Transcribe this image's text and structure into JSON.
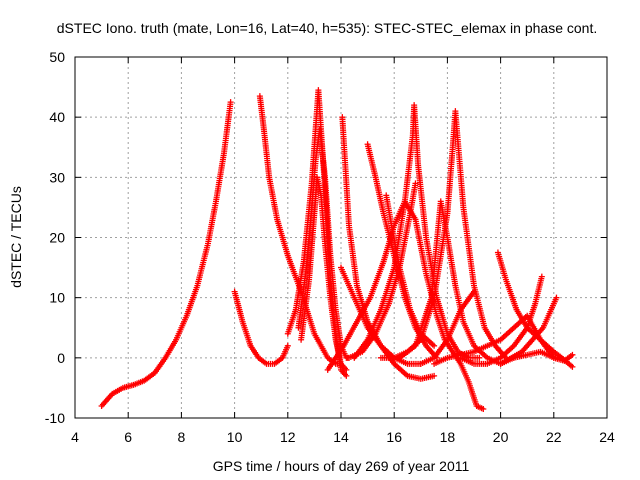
{
  "chart_data": {
    "type": "scatter",
    "title": "dSTEC Iono. truth (mate, Lon=16, Lat=40, h=535): STEC-STEC_elemax in phase cont.",
    "xlabel": "GPS time / hours of day 269 of year 2011",
    "ylabel": "dSTEC  / TECUs",
    "xlim": [
      4,
      24
    ],
    "ylim": [
      -10,
      50
    ],
    "x_ticks": [
      4,
      6,
      8,
      10,
      12,
      14,
      16,
      18,
      20,
      22,
      24
    ],
    "y_ticks": [
      -10,
      0,
      10,
      20,
      30,
      40,
      50
    ],
    "grid": true,
    "marker": "+",
    "color": "#ff0000",
    "series": [
      {
        "x": [
          5.0,
          5.4,
          5.8,
          6.2,
          6.6,
          7.0,
          7.4,
          7.8,
          8.2,
          8.6,
          9.0,
          9.3,
          9.6,
          9.85
        ],
        "y": [
          -8,
          -6,
          -5,
          -4.5,
          -3.8,
          -2.5,
          0,
          3,
          7,
          12,
          19,
          26,
          34,
          42.5
        ]
      },
      {
        "x": [
          10.0,
          10.3,
          10.6,
          10.9,
          11.2,
          11.5,
          11.8,
          12.0
        ],
        "y": [
          11,
          6,
          2,
          0,
          -1,
          -1,
          0,
          2
        ]
      },
      {
        "x": [
          10.95,
          11.1,
          11.3,
          11.6,
          12.0,
          12.5,
          13.0,
          13.5,
          13.8,
          14.0
        ],
        "y": [
          43.5,
          38,
          30,
          23,
          17,
          11,
          4,
          0,
          -1,
          -1
        ]
      },
      {
        "x": [
          12.4,
          12.7,
          12.9,
          13.05,
          13.2,
          13.4,
          13.6,
          13.8,
          14.0,
          14.2,
          14.3
        ],
        "y": [
          5,
          15,
          25,
          33,
          38,
          30,
          17,
          8,
          2,
          0,
          0
        ]
      },
      {
        "x": [
          12.5,
          12.8,
          13.0,
          13.1,
          13.25,
          13.4,
          13.6,
          13.8,
          14.0,
          14.2
        ],
        "y": [
          3,
          13,
          24,
          30,
          27,
          19,
          10,
          3,
          -1,
          -2
        ]
      },
      {
        "x": [
          12.0,
          12.3,
          12.6,
          12.9,
          13.15,
          13.4,
          13.6,
          13.8,
          14.0,
          14.2
        ],
        "y": [
          4,
          8,
          16,
          29,
          44.5,
          28,
          13,
          4,
          -2,
          -3
        ]
      },
      {
        "x": [
          14.05,
          14.3,
          14.6,
          15.0,
          15.5,
          16.0,
          16.5,
          17.0,
          17.5
        ],
        "y": [
          40,
          22,
          12,
          6,
          2,
          -1,
          -3,
          -3.5,
          -3
        ]
      },
      {
        "x": [
          13.5,
          13.8,
          14.1,
          14.6,
          15.1,
          15.6,
          16.0,
          16.4,
          16.8,
          17.2,
          17.6,
          17.9,
          18.2,
          18.5,
          18.8,
          19.1,
          19.35
        ],
        "y": [
          -2,
          0,
          2,
          6,
          10,
          16,
          22,
          26,
          23,
          14,
          7,
          3,
          1,
          -1,
          -4,
          -8,
          -8.5
        ]
      },
      {
        "x": [
          14.0,
          14.5,
          15.0,
          15.5,
          16.0,
          16.5,
          17.0
        ],
        "y": [
          15,
          10,
          5,
          2,
          0,
          -1,
          -1
        ]
      },
      {
        "x": [
          15.0,
          15.3,
          15.6,
          16.0,
          16.4,
          16.8,
          17.2,
          17.6
        ],
        "y": [
          35.5,
          30,
          24,
          17,
          10,
          5,
          2,
          0
        ]
      },
      {
        "x": [
          15.7,
          15.9,
          16.2,
          16.6,
          17.0,
          17.5
        ],
        "y": [
          27,
          22,
          15,
          8,
          4,
          2
        ]
      },
      {
        "x": [
          14.5,
          15.0,
          15.5,
          16.0,
          16.4,
          16.7,
          16.75,
          16.9,
          17.2,
          17.6,
          18.0,
          18.4,
          18.8,
          19.2
        ],
        "y": [
          0,
          3,
          8,
          15,
          26,
          37,
          42,
          32,
          20,
          10,
          4,
          1,
          0,
          0
        ]
      },
      {
        "x": [
          14.3,
          14.8,
          15.3,
          15.8,
          16.2,
          16.6,
          16.8
        ],
        "y": [
          0,
          1,
          4,
          9,
          15,
          24,
          29
        ]
      },
      {
        "x": [
          16.2,
          16.8,
          17.4,
          17.75,
          18.0,
          18.3,
          18.6,
          19.0,
          19.5,
          20.0,
          20.5
        ],
        "y": [
          0,
          2,
          10,
          26,
          20,
          12,
          6,
          2,
          0,
          -1,
          0
        ]
      },
      {
        "x": [
          15.5,
          16.0,
          16.5,
          17.0,
          17.5,
          18.0,
          18.2,
          18.3,
          18.6,
          19.0,
          19.4,
          19.8,
          20.2
        ],
        "y": [
          0,
          0,
          1,
          3,
          10,
          24,
          35,
          41,
          25,
          12,
          5,
          2,
          0
        ]
      },
      {
        "x": [
          17.0,
          17.5,
          18.0,
          18.5,
          19.0
        ],
        "y": [
          -1,
          0,
          3,
          8,
          11
        ]
      },
      {
        "x": [
          17.5,
          18.0,
          18.5,
          19.0,
          19.5,
          20.0,
          20.5,
          21.0,
          21.5,
          22.0
        ],
        "y": [
          -1,
          0,
          0.5,
          1,
          2,
          3,
          5,
          7,
          3,
          0
        ]
      },
      {
        "x": [
          19.9,
          20.2,
          20.6,
          21.0,
          21.5,
          22.0,
          22.3,
          22.7
        ],
        "y": [
          17.5,
          13,
          8,
          5,
          3,
          1,
          0,
          -1.5
        ]
      },
      {
        "x": [
          20.0,
          20.4,
          20.8,
          21.2,
          21.6,
          21.9,
          22.1
        ],
        "y": [
          -1,
          0,
          1,
          3,
          5,
          8,
          10
        ]
      },
      {
        "x": [
          18.5,
          19.0,
          19.5,
          20.0,
          20.5,
          21.0,
          21.3,
          21.55
        ],
        "y": [
          0,
          -1,
          -1,
          0,
          2,
          5,
          9,
          13.5
        ]
      },
      {
        "x": [
          20.5,
          21.0,
          21.5,
          22.0,
          22.4,
          22.7
        ],
        "y": [
          0,
          0.5,
          1,
          0,
          -0.5,
          0.5
        ]
      }
    ]
  }
}
